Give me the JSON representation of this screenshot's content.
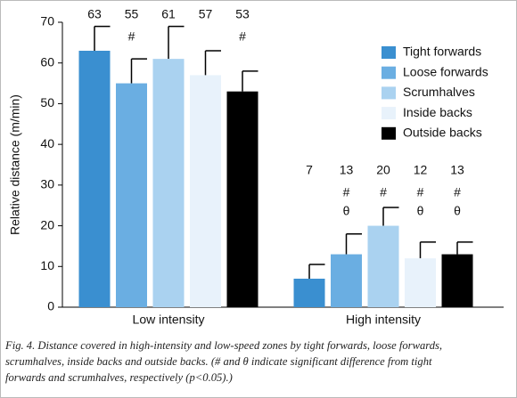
{
  "chart_data": {
    "type": "bar",
    "y_label": "Relative distance (m/min)",
    "categories": [
      "Low intensity",
      "High intensity"
    ],
    "ylim": [
      0,
      70
    ],
    "yticks": [
      0,
      10,
      20,
      30,
      40,
      50,
      60,
      70
    ],
    "legend": "upper right",
    "series": [
      {
        "name": "Tight forwards",
        "color": "#3a8fd0",
        "values": [
          63,
          7
        ],
        "errors": [
          6,
          3.5
        ],
        "symbols": [
          [],
          []
        ]
      },
      {
        "name": "Loose forwards",
        "color": "#6aaee2",
        "values": [
          55,
          13
        ],
        "errors": [
          6,
          5
        ],
        "symbols": [
          [
            "#"
          ],
          [
            "#",
            "θ"
          ]
        ]
      },
      {
        "name": "Scrumhalves",
        "color": "#aad2f0",
        "values": [
          61,
          20
        ],
        "errors": [
          8,
          4.5
        ],
        "symbols": [
          [],
          [
            "#"
          ]
        ]
      },
      {
        "name": "Inside backs",
        "color": "#e8f2fb",
        "values": [
          57,
          12
        ],
        "errors": [
          6,
          4
        ],
        "symbols": [
          [],
          [
            "#",
            "θ"
          ]
        ]
      },
      {
        "name": "Outside backs",
        "color": "#000000",
        "values": [
          53,
          13
        ],
        "errors": [
          5,
          3
        ],
        "symbols": [
          [
            "#"
          ],
          [
            "#",
            "θ"
          ]
        ]
      }
    ],
    "caption": [
      "Fig. 4. Distance covered in high-intensity and low-speed zones by tight forwards, loose forwards,",
      "scrumhalves, inside backs and outside backs. (# and θ indicate significant difference from tight",
      "forwards and scrumhalves, respectively (p<0.05).)"
    ]
  }
}
